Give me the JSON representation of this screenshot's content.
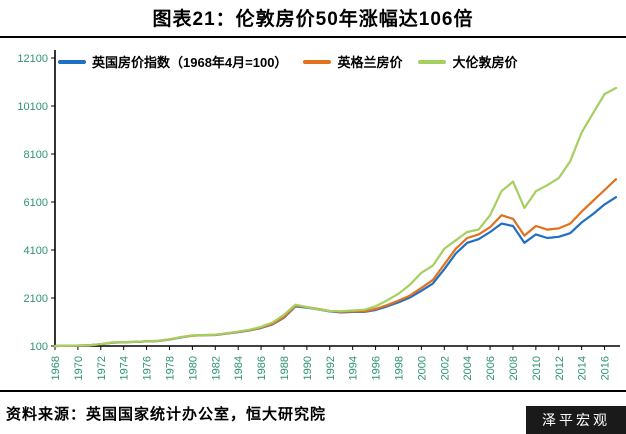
{
  "title": "图表21：伦敦房价50年涨幅达106倍",
  "source_note": "资料来源：英国国家统计办公室，恒大研究院",
  "watermark": "泽平宏观",
  "colors": {
    "axis_label": "#2e9370",
    "axis_line": "#000000",
    "watermark_bg": "#1a1a1a"
  },
  "chart_data": {
    "type": "line",
    "title": "图表21：伦敦房价50年涨幅达106倍",
    "grid": false,
    "legend_position": "top",
    "ylim": [
      100,
      12100
    ],
    "y_ticks": [
      100,
      2100,
      4100,
      6100,
      8100,
      10100,
      12100
    ],
    "x_tick_labels": [
      "1968",
      "1970",
      "1972",
      "1974",
      "1976",
      "1978",
      "1980",
      "1982",
      "1984",
      "1986",
      "1988",
      "1990",
      "1992",
      "1994",
      "1996",
      "1998",
      "2000",
      "2002",
      "2004",
      "2006",
      "2008",
      "2010",
      "2012",
      "2014",
      "2016"
    ],
    "x": [
      1968,
      1969,
      1970,
      1971,
      1972,
      1973,
      1974,
      1975,
      1976,
      1977,
      1978,
      1979,
      1980,
      1981,
      1982,
      1983,
      1984,
      1985,
      1986,
      1987,
      1988,
      1989,
      1990,
      1991,
      1992,
      1993,
      1994,
      1995,
      1996,
      1997,
      1998,
      1999,
      2000,
      2001,
      2002,
      2003,
      2004,
      2005,
      2006,
      2007,
      2008,
      2009,
      2010,
      2011,
      2012,
      2013,
      2014,
      2015,
      2016,
      2017
    ],
    "series": [
      {
        "name": "英国房价指数（1968年4月=100）",
        "color": "#1f6fc4",
        "values": [
          100,
          108,
          118,
          132,
          175,
          240,
          255,
          270,
          290,
          310,
          370,
          460,
          530,
          550,
          560,
          620,
          680,
          750,
          850,
          1000,
          1280,
          1750,
          1700,
          1620,
          1540,
          1500,
          1520,
          1520,
          1600,
          1750,
          1920,
          2120,
          2400,
          2700,
          3300,
          3950,
          4400,
          4550,
          4850,
          5200,
          5100,
          4400,
          4750,
          4600,
          4650,
          4800,
          5250,
          5600,
          6000,
          6300
        ]
      },
      {
        "name": "英格兰房价",
        "color": "#e2711d",
        "values": [
          100,
          108,
          118,
          133,
          177,
          243,
          258,
          273,
          293,
          313,
          373,
          465,
          535,
          555,
          565,
          625,
          690,
          760,
          865,
          1020,
          1310,
          1780,
          1720,
          1640,
          1560,
          1520,
          1540,
          1540,
          1640,
          1800,
          1990,
          2200,
          2520,
          2850,
          3500,
          4150,
          4600,
          4750,
          5050,
          5550,
          5400,
          4700,
          5100,
          4950,
          5000,
          5200,
          5700,
          6150,
          6600,
          7050
        ]
      },
      {
        "name": "大伦敦房价",
        "color": "#a5cf5e",
        "values": [
          100,
          108,
          119,
          134,
          180,
          248,
          262,
          276,
          296,
          316,
          378,
          470,
          540,
          560,
          570,
          635,
          700,
          780,
          900,
          1080,
          1400,
          1820,
          1720,
          1620,
          1560,
          1550,
          1580,
          1610,
          1750,
          2000,
          2280,
          2650,
          3150,
          3450,
          4150,
          4500,
          4850,
          4950,
          5550,
          6550,
          6950,
          5850,
          6550,
          6800,
          7100,
          7800,
          9000,
          9800,
          10600,
          10850
        ]
      }
    ]
  }
}
